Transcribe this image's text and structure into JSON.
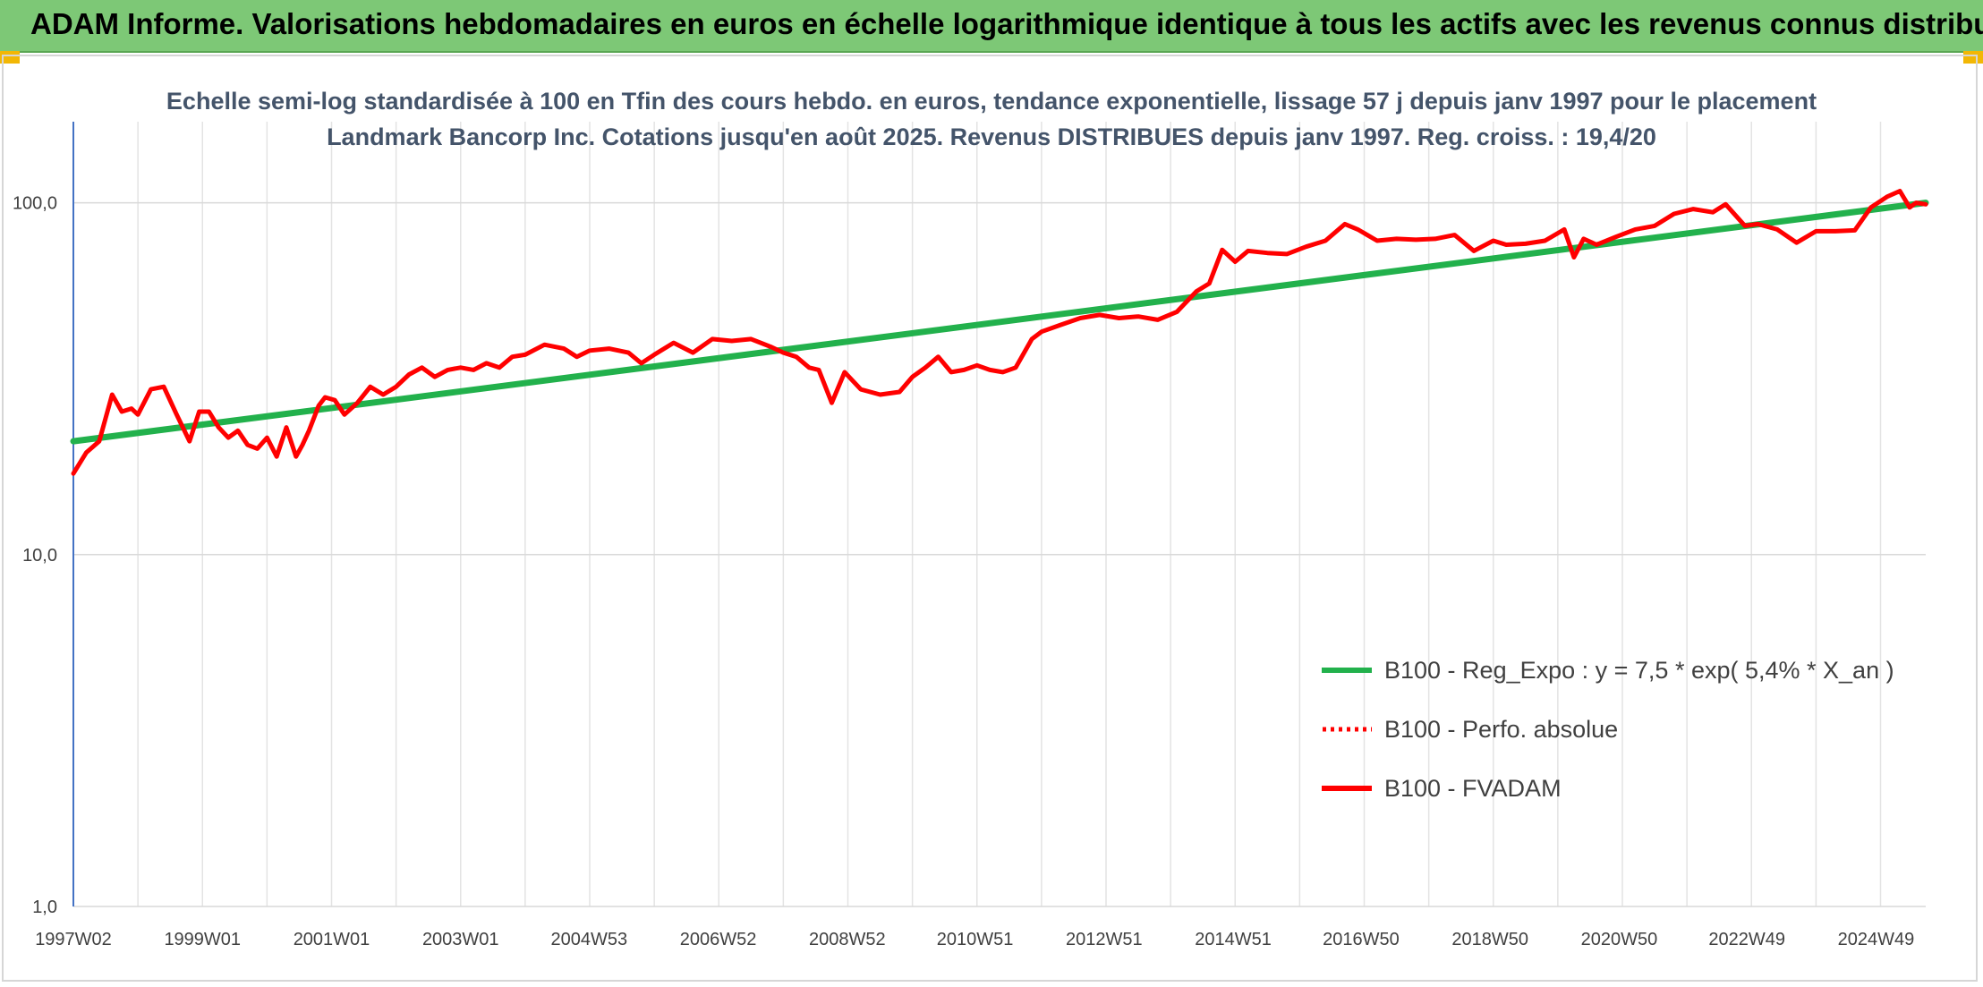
{
  "banner": {
    "title": "ADAM Informe. Valorisations hebdomadaires en euros en échelle logarithmique identique à tous les actifs avec les revenus connus distribués",
    "background": "#7dc876"
  },
  "chart_data": {
    "type": "line",
    "title": "Echelle semi-log standardisée à 100 en Tfin des cours hebdo. en euros, tendance exponentielle, lissage 57 j depuis janv 1997 pour le placement Landmark Bancorp Inc. Cotations jusqu'en août 2025. Revenus DISTRIBUES depuis janv 1997. Reg. croiss. : 19,4/20",
    "xlabel": "",
    "ylabel": "",
    "y_scale": "log",
    "ylim": [
      1,
      170
    ],
    "xlim": [
      1997.0,
      2025.7
    ],
    "y_ticks": [
      1,
      10,
      100
    ],
    "y_tick_labels": [
      "1,0",
      "10,0",
      "100,0"
    ],
    "x_ticks": [
      1997.0,
      1999.0,
      2001.0,
      2003.0,
      2004.99,
      2006.99,
      2008.99,
      2010.97,
      2012.97,
      2014.97,
      2016.95,
      2018.95,
      2020.95,
      2022.93,
      2024.93
    ],
    "x_tick_labels": [
      "1997W02",
      "1999W01",
      "2001W01",
      "2003W01",
      "2004W53",
      "2006W52",
      "2008W52",
      "2010W51",
      "2012W51",
      "2014W51",
      "2016W50",
      "2018W50",
      "2020W50",
      "2022W49",
      "2024W49"
    ],
    "grid": true,
    "legend_position": "lower-right",
    "series": [
      {
        "name": "B100 - Reg_Expo : y = 7,5 * exp( 5,4% *  X_an )",
        "color": "#22b14c",
        "style": "solid",
        "x": [
          1997.0,
          2025.7
        ],
        "values": [
          21.0,
          100.0
        ]
      },
      {
        "name": "B100 - Perfo. absolue",
        "color": "#ff0000",
        "style": "dotted",
        "x": [],
        "values": []
      },
      {
        "name": "B100 - FVADAM",
        "color": "#ff0000",
        "style": "solid",
        "x": [
          1997.0,
          1997.2,
          1997.4,
          1997.6,
          1997.75,
          1997.9,
          1998.0,
          1998.2,
          1998.4,
          1998.6,
          1998.8,
          1998.95,
          1999.1,
          1999.25,
          1999.4,
          1999.55,
          1999.7,
          1999.85,
          2000.0,
          2000.15,
          2000.3,
          2000.45,
          2000.55,
          2000.65,
          2000.8,
          2000.9,
          2001.05,
          2001.2,
          2001.4,
          2001.6,
          2001.8,
          2002.0,
          2002.2,
          2002.4,
          2002.6,
          2002.8,
          2003.0,
          2003.2,
          2003.4,
          2003.6,
          2003.8,
          2004.0,
          2004.3,
          2004.6,
          2004.8,
          2005.0,
          2005.3,
          2005.6,
          2005.8,
          2006.0,
          2006.3,
          2006.6,
          2006.9,
          2007.2,
          2007.5,
          2007.8,
          2008.0,
          2008.2,
          2008.4,
          2008.55,
          2008.75,
          2008.95,
          2009.2,
          2009.5,
          2009.8,
          2010.0,
          2010.2,
          2010.4,
          2010.6,
          2010.8,
          2011.0,
          2011.2,
          2011.4,
          2011.6,
          2011.85,
          2012.0,
          2012.3,
          2012.6,
          2012.9,
          2013.2,
          2013.5,
          2013.8,
          2014.1,
          2014.4,
          2014.6,
          2014.8,
          2015.0,
          2015.2,
          2015.5,
          2015.8,
          2016.1,
          2016.4,
          2016.7,
          2016.9,
          2017.2,
          2017.5,
          2017.8,
          2018.1,
          2018.4,
          2018.7,
          2019.0,
          2019.2,
          2019.5,
          2019.8,
          2020.1,
          2020.25,
          2020.4,
          2020.6,
          2020.9,
          2021.2,
          2021.5,
          2021.8,
          2022.1,
          2022.4,
          2022.6,
          2022.9,
          2023.1,
          2023.4,
          2023.7,
          2024.0,
          2024.3,
          2024.6,
          2024.85,
          2025.1,
          2025.3,
          2025.45,
          2025.55,
          2025.7
        ],
        "values": [
          17.0,
          19.5,
          21.0,
          28.5,
          25.5,
          26.0,
          25.0,
          29.5,
          30.0,
          25.0,
          21.0,
          25.5,
          25.5,
          23.0,
          21.5,
          22.5,
          20.5,
          20.0,
          21.5,
          19.0,
          23.0,
          19.0,
          20.5,
          22.5,
          26.5,
          28.0,
          27.5,
          25.0,
          27.0,
          30.0,
          28.5,
          30.0,
          32.5,
          34.0,
          32.0,
          33.5,
          34.0,
          33.5,
          35.0,
          34.0,
          36.5,
          37.0,
          39.5,
          38.5,
          36.5,
          38.0,
          38.5,
          37.5,
          35.0,
          37.0,
          40.0,
          37.5,
          41.0,
          40.5,
          41.0,
          39.0,
          37.5,
          36.5,
          34.0,
          33.5,
          27.0,
          33.0,
          29.5,
          28.5,
          29.0,
          32.0,
          34.0,
          36.5,
          33.0,
          33.5,
          34.5,
          33.5,
          33.0,
          34.0,
          41.0,
          43.0,
          45.0,
          47.0,
          48.0,
          47.0,
          47.5,
          46.5,
          49.0,
          56.0,
          59.0,
          73.5,
          68.0,
          73.0,
          72.0,
          71.5,
          75.0,
          78.0,
          87.0,
          84.0,
          78.0,
          79.0,
          78.5,
          79.0,
          81.0,
          73.0,
          78.0,
          76.0,
          76.5,
          78.0,
          84.0,
          70.0,
          79.0,
          76.0,
          80.0,
          84.0,
          86.0,
          93.0,
          96.0,
          94.0,
          99.0,
          86.0,
          87.0,
          84.0,
          77.0,
          83.0,
          83.0,
          83.5,
          97.0,
          104.0,
          108.0,
          97.0,
          100.0,
          99.0
        ]
      }
    ]
  }
}
